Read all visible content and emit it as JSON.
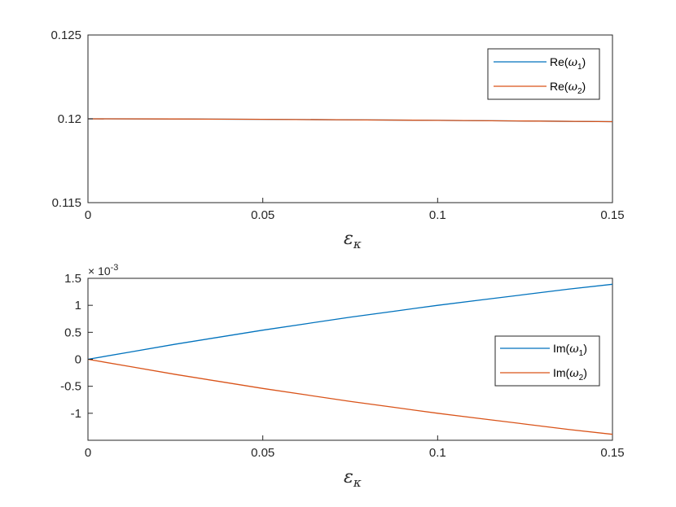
{
  "chart_data": [
    {
      "type": "line",
      "xlabel": "ε",
      "xlabel_subscript": "κ",
      "xlim": [
        0,
        0.15
      ],
      "ylim": [
        0.115,
        0.125
      ],
      "xticks": [
        "0",
        "0.05",
        "0.1",
        "0.15"
      ],
      "yticks": [
        "0.125",
        "0.12",
        "0.115"
      ],
      "legend_position": "top-right",
      "grid": false,
      "series": [
        {
          "name": "Re(ω1)",
          "legend_label": {
            "pre": "Re(",
            "sym": "ω",
            "sub": "1",
            "post": ")"
          },
          "color": "#0072BD",
          "x": [
            0,
            0.025,
            0.05,
            0.075,
            0.1,
            0.125,
            0.15
          ],
          "y": [
            0.12,
            0.11999,
            0.11997,
            0.11994,
            0.11991,
            0.11987,
            0.11983
          ]
        },
        {
          "name": "Re(ω2)",
          "legend_label": {
            "pre": "Re(",
            "sym": "ω",
            "sub": "2",
            "post": ")"
          },
          "color": "#D95319",
          "x": [
            0,
            0.025,
            0.05,
            0.075,
            0.1,
            0.125,
            0.15
          ],
          "y": [
            0.12,
            0.11999,
            0.11997,
            0.11994,
            0.11991,
            0.11987,
            0.11983
          ]
        }
      ]
    },
    {
      "type": "line",
      "xlabel": "ε",
      "xlabel_subscript": "κ",
      "xlim": [
        0,
        0.15
      ],
      "ylim": [
        -1.5,
        1.5
      ],
      "y_exponent_label": {
        "base": "× 10",
        "power": "-3"
      },
      "xticks": [
        "0",
        "0.05",
        "0.1",
        "0.15"
      ],
      "yticks": [
        "1.5",
        "1",
        "0.5",
        "0",
        "-0.5",
        "-1"
      ],
      "legend_position": "right",
      "grid": false,
      "series": [
        {
          "name": "Im(ω1)",
          "legend_label": {
            "pre": "Im(",
            "sym": "ω",
            "sub": "1",
            "post": ")"
          },
          "color": "#0072BD",
          "x": [
            0,
            0.0125,
            0.025,
            0.0375,
            0.05,
            0.0625,
            0.075,
            0.0875,
            0.1,
            0.1125,
            0.125,
            0.1375,
            0.15
          ],
          "y": [
            0,
            0.14,
            0.28,
            0.41,
            0.54,
            0.66,
            0.78,
            0.89,
            1.0,
            1.1,
            1.2,
            1.3,
            1.39
          ]
        },
        {
          "name": "Im(ω2)",
          "legend_label": {
            "pre": "Im(",
            "sym": "ω",
            "sub": "2",
            "post": ")"
          },
          "color": "#D95319",
          "x": [
            0,
            0.0125,
            0.025,
            0.0375,
            0.05,
            0.0625,
            0.075,
            0.0875,
            0.1,
            0.1125,
            0.125,
            0.1375,
            0.15
          ],
          "y": [
            0,
            -0.14,
            -0.28,
            -0.41,
            -0.54,
            -0.66,
            -0.78,
            -0.89,
            -1.0,
            -1.1,
            -1.2,
            -1.3,
            -1.39
          ]
        }
      ]
    }
  ]
}
